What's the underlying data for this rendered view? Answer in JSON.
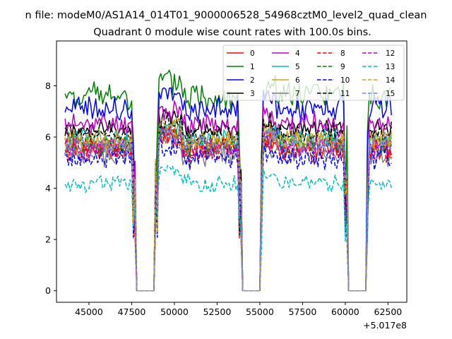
{
  "chart_data": {
    "type": "line",
    "suptitle": "n file: modeM0/AS1A14_014T01_9000006528_54968cztM0_level2_quad_clean",
    "title": "Quadrant 0 module wise count rates with 100.0s bins.",
    "xlabel": "",
    "ylabel": "",
    "x_offset_label": "+5.017e8",
    "xlim": [
      43100,
      63600
    ],
    "ylim": [
      -0.45,
      9.75
    ],
    "xticks": [
      45000,
      47500,
      50000,
      52500,
      55000,
      57500,
      60000,
      62500
    ],
    "xtick_labels": [
      "45000",
      "47500",
      "50000",
      "52500",
      "55000",
      "57500",
      "60000",
      "62500"
    ],
    "yticks": [
      0,
      2,
      4,
      6,
      8
    ],
    "ytick_labels": [
      "0",
      "2",
      "4",
      "6",
      "8"
    ],
    "x_start": 43600,
    "x_step": 100,
    "x_end": 62700,
    "gaps": [
      [
        47800,
        48850
      ],
      [
        54000,
        55000
      ],
      [
        60200,
        61200
      ]
    ],
    "gap_value": 0,
    "legend_position": "upper right",
    "legend_columns": 4,
    "series": [
      {
        "name": "0",
        "color": "#ff0000",
        "dash": "solid",
        "level": 5.6,
        "noise": 0.35
      },
      {
        "name": "1",
        "color": "#008000",
        "dash": "solid",
        "level": 7.6,
        "noise": 0.45
      },
      {
        "name": "2",
        "color": "#0000ff",
        "dash": "solid",
        "level": 7.1,
        "noise": 0.4
      },
      {
        "name": "3",
        "color": "#000000",
        "dash": "solid",
        "level": 6.3,
        "noise": 0.3
      },
      {
        "name": "4",
        "color": "#bf00bf",
        "dash": "solid",
        "level": 6.5,
        "noise": 0.35
      },
      {
        "name": "5",
        "color": "#00bfbf",
        "dash": "solid",
        "level": 5.9,
        "noise": 0.35
      },
      {
        "name": "6",
        "color": "#d4a017",
        "dash": "solid",
        "level": 5.8,
        "noise": 0.35
      },
      {
        "name": "7",
        "color": "#808080",
        "dash": "solid",
        "level": 5.3,
        "noise": 0.35
      },
      {
        "name": "8",
        "color": "#ff0000",
        "dash": "dashed",
        "level": 5.5,
        "noise": 0.35
      },
      {
        "name": "9",
        "color": "#008000",
        "dash": "dashed",
        "level": 5.7,
        "noise": 0.35
      },
      {
        "name": "10",
        "color": "#0000ff",
        "dash": "dashed",
        "level": 5.2,
        "noise": 0.35
      },
      {
        "name": "11",
        "color": "#000000",
        "dash": "dashed",
        "level": 6.1,
        "noise": 0.3
      },
      {
        "name": "12",
        "color": "#bf00bf",
        "dash": "dashed",
        "level": 5.6,
        "noise": 0.35
      },
      {
        "name": "13",
        "color": "#00bfbf",
        "dash": "dashed",
        "level": 4.2,
        "noise": 0.25
      },
      {
        "name": "14",
        "color": "#d4a017",
        "dash": "dashed",
        "level": 5.9,
        "noise": 0.35
      },
      {
        "name": "15",
        "color": "#7f86e0",
        "dash": "dashed",
        "level": 5.7,
        "noise": 0.35
      }
    ]
  }
}
